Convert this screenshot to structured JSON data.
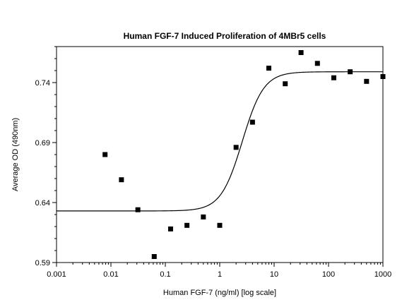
{
  "chart_data": {
    "type": "scatter",
    "title": "Human FGF-7 Induced Proliferation of 4MBr5 cells",
    "xlabel": "Human FGF-7 (ng/ml) [log scale]",
    "ylabel": "Average OD (490nm)",
    "x_scale": "log",
    "xlim": [
      0.001,
      1000
    ],
    "ylim": [
      0.59,
      0.77
    ],
    "x_ticks": [
      0.001,
      0.01,
      0.1,
      1,
      10,
      100,
      1000
    ],
    "x_tick_labels": [
      "0.001",
      "0.01",
      "0.1",
      "1",
      "10",
      "100",
      "1000"
    ],
    "y_ticks": [
      0.59,
      0.64,
      0.69,
      0.74
    ],
    "y_tick_labels": [
      "0.59",
      "0.64",
      "0.69",
      "0.74"
    ],
    "grid": false,
    "series": [
      {
        "marker": "square",
        "x": [
          0.0078,
          0.0156,
          0.0313,
          0.0625,
          0.125,
          0.25,
          0.5,
          1,
          2,
          4,
          8,
          16,
          31.25,
          62.5,
          125,
          250,
          500,
          1000
        ],
        "y": [
          0.68,
          0.659,
          0.634,
          0.595,
          0.618,
          0.621,
          0.628,
          0.621,
          0.686,
          0.707,
          0.752,
          0.739,
          0.765,
          0.756,
          0.744,
          0.749,
          0.741,
          0.745
        ]
      }
    ],
    "fit_curve": {
      "model": "4-parameter logistic",
      "bottom": 0.633,
      "top": 0.749,
      "ec50": 2.6,
      "hill": 2.2
    }
  }
}
